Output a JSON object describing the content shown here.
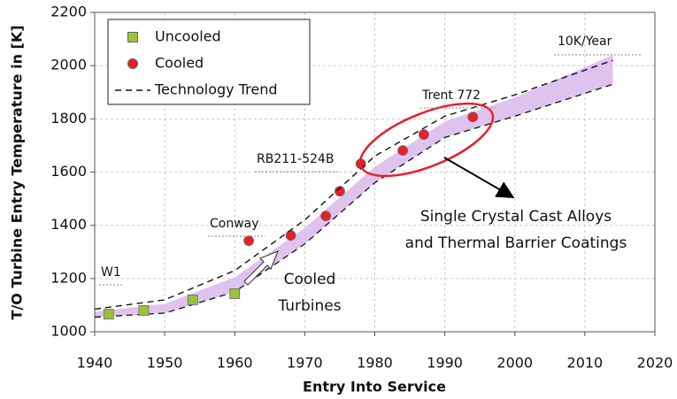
{
  "chart_data": {
    "type": "scatter",
    "x_label": "Entry Into Service",
    "y_label": "T/O Turbine Entry Temperature in [K]",
    "xlim": [
      1940,
      2020
    ],
    "xticks": [
      1940,
      1950,
      1960,
      1970,
      1980,
      1990,
      2000,
      2010,
      2020
    ],
    "ylim": [
      1000,
      2200
    ],
    "yticks": [
      1000,
      1200,
      1400,
      1600,
      1800,
      2000,
      2200
    ],
    "grid": true,
    "legend": "upper left",
    "series": [
      {
        "name": "Uncooled",
        "color": "#9cc23a",
        "marker": "square",
        "x": [
          1942,
          1947,
          1954,
          1960
        ],
        "values": [
          1066,
          1080,
          1120,
          1143
        ]
      },
      {
        "name": "Cooled",
        "color": "#e8202a",
        "marker": "circle",
        "x": [
          1962,
          1968,
          1973,
          1975,
          1978,
          1984,
          1987,
          1994
        ],
        "values": [
          1342,
          1362,
          1435,
          1528,
          1631,
          1681,
          1741,
          1807
        ]
      },
      {
        "name": "Technology Trend",
        "color": "#111111",
        "marker": "dashed-line",
        "x": [
          1940,
          1950,
          1960,
          1970,
          1980,
          1990,
          2000,
          2014
        ],
        "values": [
          1085,
          1120,
          1230,
          1420,
          1660,
          1810,
          1890,
          2020
        ]
      }
    ],
    "band": {
      "color": "#d9b8ec",
      "x": [
        1940,
        1950,
        1960,
        1970,
        1980,
        1990,
        2000,
        2014
      ],
      "upper": [
        1075,
        1105,
        1205,
        1390,
        1620,
        1790,
        1880,
        2040
      ],
      "lower": [
        1055,
        1070,
        1150,
        1330,
        1560,
        1730,
        1810,
        1930
      ]
    },
    "annotations": [
      {
        "text": [
          "W1"
        ]
      },
      {
        "text": [
          "Conway"
        ]
      },
      {
        "text": [
          "RB211-524B"
        ]
      },
      {
        "text": [
          "Trent 772"
        ]
      },
      {
        "text": [
          "10K/Year"
        ]
      },
      {
        "text": [
          "Cooled",
          "Turbines"
        ]
      },
      {
        "text": [
          "Single Crystal Cast Alloys",
          "and Thermal Barrier Coatings"
        ]
      }
    ]
  }
}
